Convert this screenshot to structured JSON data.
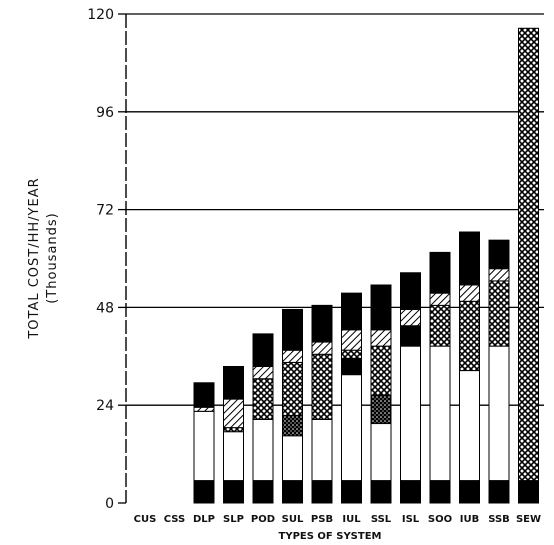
{
  "chart_data": {
    "type": "bar",
    "stacked": true,
    "ylabel": "TOTAL COST/HH/YEAR",
    "ylabel_unit": "(Thousands)",
    "xlabel": "TYPES OF SYSTEM",
    "ylim": [
      0,
      120
    ],
    "yticks": [
      "0",
      "24",
      "48",
      "72",
      "96",
      "120"
    ],
    "grid": true,
    "categories": [
      "CUS",
      "CSS",
      "DLP",
      "SLP",
      "POD",
      "SUL",
      "PSB",
      "IUL",
      "SSL",
      "ISL",
      "SOO",
      "IUB",
      "SSB",
      "SEW"
    ],
    "series": [
      {
        "pattern": "solid-black",
        "values": [
          0,
          0,
          5.5,
          5.5,
          5.5,
          5.5,
          5.5,
          5.5,
          5.5,
          5.5,
          5.5,
          5.5,
          5.5,
          5.5
        ]
      },
      {
        "pattern": "white",
        "values": [
          0,
          0,
          17,
          12,
          15,
          11,
          15,
          26,
          14,
          33,
          33,
          27,
          33,
          0
        ]
      },
      {
        "pattern": "dark-stipple",
        "values": [
          0,
          0,
          0,
          0,
          0,
          5,
          0,
          0,
          7,
          0,
          0,
          0,
          0,
          0
        ]
      },
      {
        "pattern": "crosshatch",
        "values": [
          0,
          0,
          0,
          1,
          10,
          13,
          16,
          0,
          12,
          0,
          0,
          0,
          0,
          111
        ]
      },
      {
        "pattern": "solid-black",
        "values": [
          0,
          0,
          0,
          0,
          0,
          0,
          0,
          4,
          0,
          5,
          0,
          0,
          0,
          0
        ]
      },
      {
        "pattern": "crosshatch",
        "values": [
          0,
          0,
          0,
          0,
          0,
          0,
          0,
          2,
          0,
          0,
          10,
          17,
          16,
          0
        ]
      },
      {
        "pattern": "diagonal-hatch",
        "values": [
          0,
          0,
          1,
          7,
          3,
          3,
          3,
          5,
          4,
          4,
          3,
          4,
          3,
          0
        ]
      },
      {
        "pattern": "solid-black",
        "values": [
          0,
          0,
          6,
          8,
          8,
          10,
          9,
          9,
          11,
          9,
          10,
          13,
          7,
          0
        ]
      }
    ]
  }
}
